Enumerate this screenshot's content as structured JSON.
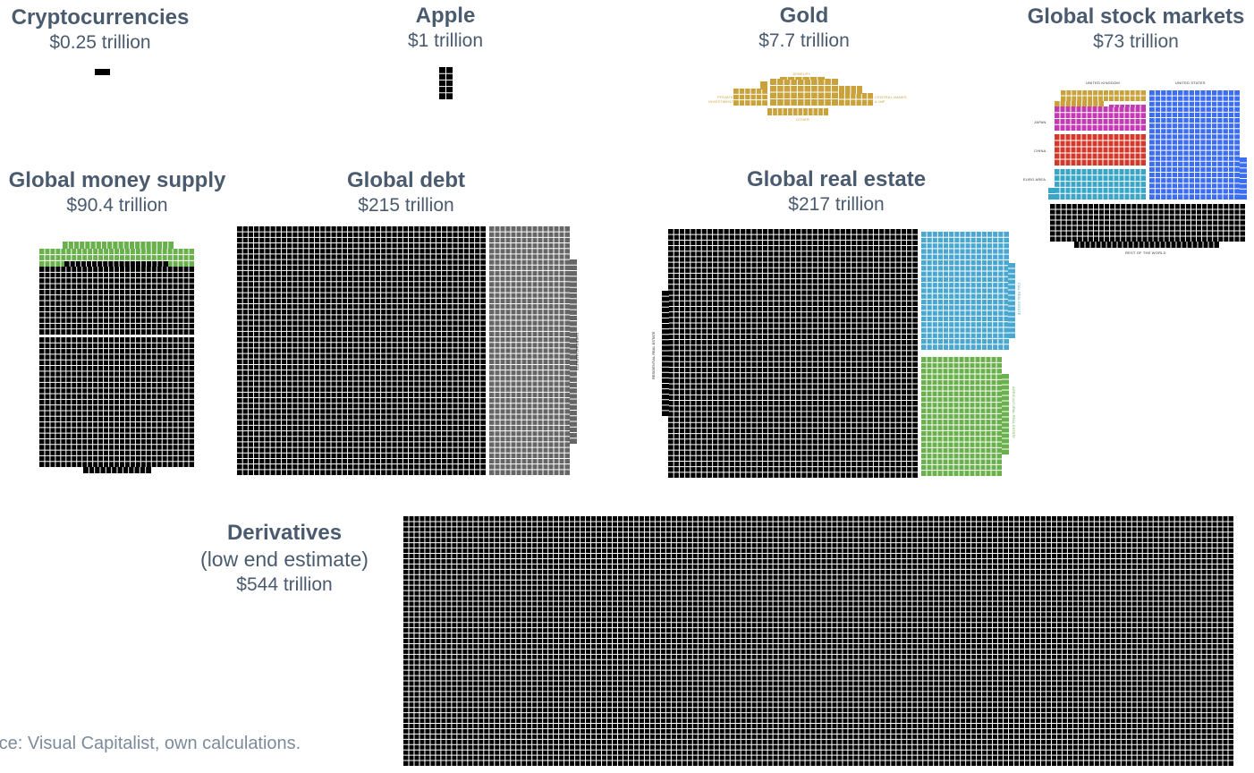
{
  "chart_data": {
    "type": "waffle",
    "unit_note": "",
    "blocks": [
      {
        "id": "crypto",
        "title": "Cryptocurrencies",
        "value_label": "$0.25 trillion",
        "value": 0.25
      },
      {
        "id": "apple",
        "title": "Apple",
        "value_label": "$1 trillion",
        "value": 1
      },
      {
        "id": "gold",
        "title": "Gold",
        "value_label": "$7.7 trillion",
        "value": 7.7,
        "segments": [
          {
            "label": "Jewelry",
            "color": "#c9a23c"
          },
          {
            "label": "Private investment",
            "color": "#c9a23c"
          },
          {
            "label": "Central banks & IMF",
            "color": "#c9a23c"
          },
          {
            "label": "Other",
            "color": "#c9a23c"
          }
        ]
      },
      {
        "id": "stocks",
        "title": "Global stock markets",
        "value_label": "$73 trillion",
        "value": 73,
        "segments": [
          {
            "label": "United Kingdom",
            "color": "#c9a23c"
          },
          {
            "label": "United States",
            "color": "#3d6df2"
          },
          {
            "label": "Japan",
            "color": "#c43ab0"
          },
          {
            "label": "China",
            "color": "#d23a2d"
          },
          {
            "label": "Euro Area",
            "color": "#3aa6c7"
          },
          {
            "label": "Rest of the world",
            "color": "#000000"
          }
        ]
      },
      {
        "id": "money",
        "title": "Global money supply",
        "value_label": "$90.4 trillion",
        "value": 90.4,
        "segments": [
          {
            "label": "",
            "color": "#6ab04c"
          },
          {
            "label": "",
            "color": "#000000"
          }
        ]
      },
      {
        "id": "debt",
        "title": "Global debt",
        "value_label": "$215 trillion",
        "value": 215,
        "segments": [
          {
            "label": "",
            "color": "#000000"
          },
          {
            "label": "Emerging markets",
            "color": "#666666"
          }
        ]
      },
      {
        "id": "realestate",
        "title": "Global real estate",
        "value_label": "$217 trillion",
        "value": 217,
        "segments": [
          {
            "label": "Residential real estate",
            "color": "#000000"
          },
          {
            "label": "Cial real estate",
            "color": "#4aa8d0"
          },
          {
            "label": "Agricultural real estate",
            "color": "#6ab04c"
          }
        ]
      },
      {
        "id": "derivatives",
        "title": "Derivatives",
        "subtitle": "(low end estimate)",
        "value_label": "$544 trillion",
        "value": 544
      }
    ]
  },
  "source": "rce: Visual Capitalist, own calculations.",
  "colors": {
    "title": "#4a5b6f",
    "grid_line": "#ffffff",
    "black": "#000000"
  }
}
